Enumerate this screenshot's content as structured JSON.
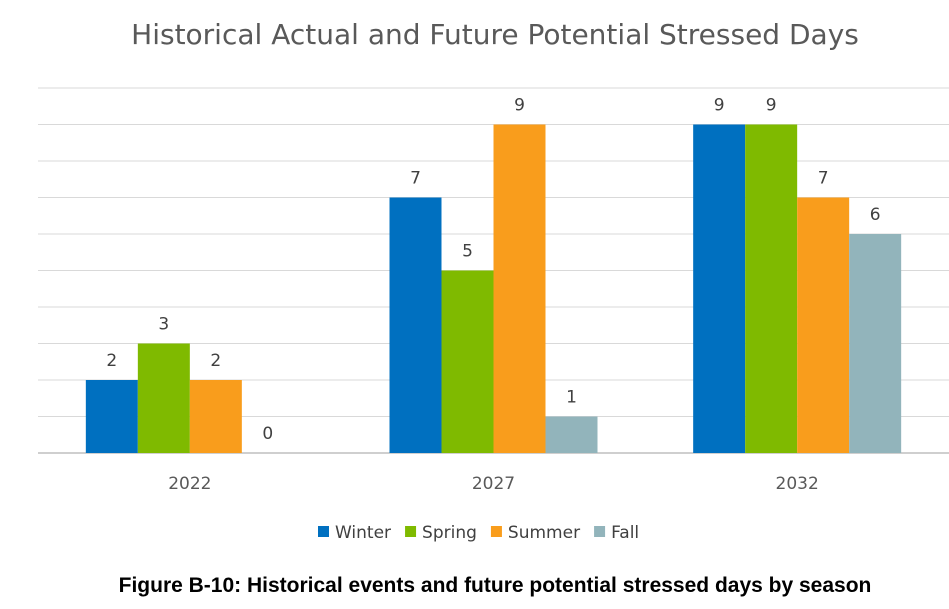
{
  "chart_data": {
    "type": "bar",
    "title": "Historical Actual and Future Potential Stressed Days",
    "categories": [
      "2022",
      "2027",
      "2032"
    ],
    "series": [
      {
        "name": "Winter",
        "color": "#0070C0",
        "values": [
          2,
          7,
          9
        ]
      },
      {
        "name": "Spring",
        "color": "#7FBA00",
        "values": [
          3,
          5,
          9
        ]
      },
      {
        "name": "Summer",
        "color": "#F99D1C",
        "values": [
          2,
          9,
          7
        ]
      },
      {
        "name": "Fall",
        "color": "#92B4BB",
        "values": [
          0,
          1,
          6
        ]
      }
    ],
    "xlabel": "",
    "ylabel": "",
    "ylim": [
      0,
      10
    ],
    "grid": true,
    "legend": "bottom"
  },
  "caption": "Figure B-10: Historical events and future potential stressed days by season"
}
